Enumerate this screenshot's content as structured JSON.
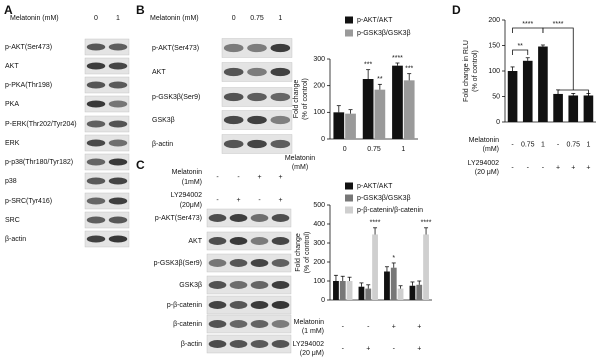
{
  "panels": {
    "A": {
      "label": "A",
      "header": "Melatonin (mM)",
      "columns": [
        "0",
        "1"
      ],
      "rows": [
        "p-AKT(Ser473)",
        "AKT",
        "p-PKA(Thr198)",
        "PKA",
        "P-ERK(Thr202/Tyr204)",
        "ERK",
        "p-p38(Thr180/Tyr182)",
        "p38",
        "p-SRC(Tyr416)",
        "SRC",
        "β-actin"
      ]
    },
    "B": {
      "label": "B",
      "header": "Melatonin (mM)",
      "columns": [
        "0",
        "0.75",
        "1"
      ],
      "rows": [
        "p-AKT(Ser473)",
        "AKT",
        "p-GSK3β(Ser9)",
        "GSK3β",
        "β-actin"
      ]
    },
    "C": {
      "label": "C",
      "conditions": [
        {
          "name": [
            "Melatonin",
            "(1mM)"
          ],
          "values": [
            "-",
            "-",
            "+",
            "+"
          ]
        },
        {
          "name": [
            "LY294002",
            "(20μM)"
          ],
          "values": [
            "-",
            "+",
            "-",
            "+"
          ]
        }
      ],
      "rows": [
        "p-AKT(Ser473)",
        "AKT",
        "p-GSK3β(Ser9)",
        "GSK3β",
        "p-β-catenin",
        "β-catenin",
        "β-actin"
      ]
    },
    "D": {
      "label": "D"
    }
  },
  "chart_data": [
    {
      "type": "bar",
      "ylabel": [
        "Fold change",
        "(% of control)"
      ],
      "xlabel": [
        "Melatonin",
        "(mM)"
      ],
      "categories": [
        "0",
        "0.75",
        "1"
      ],
      "series": [
        {
          "name": "p-AKT/AKT",
          "color": "#111111",
          "values": [
            100,
            225,
            275
          ],
          "errors": [
            25,
            35,
            10
          ],
          "significance": [
            null,
            "***",
            "****"
          ]
        },
        {
          "name": "p-GSK3β/GSK3β",
          "color": "#9a9a9a",
          "values": [
            95,
            185,
            220
          ],
          "errors": [
            15,
            20,
            25
          ],
          "significance": [
            null,
            "**",
            "***"
          ]
        }
      ],
      "ylim": [
        0,
        300
      ],
      "yticks": [
        0,
        100,
        200,
        300
      ],
      "legend": "top-left"
    },
    {
      "type": "bar",
      "ylabel": [
        "Fold change",
        "(% of control)"
      ],
      "categories": [
        null,
        null,
        null,
        null
      ],
      "conditions": [
        {
          "name": [
            "Melatonin",
            "(1 mM)"
          ],
          "values": [
            "-",
            "-",
            "+",
            "+"
          ]
        },
        {
          "name": [
            "LY294002",
            "(20 μM)"
          ],
          "values": [
            "-",
            "+",
            "-",
            "+"
          ]
        }
      ],
      "series": [
        {
          "name": "p-AKT/AKT",
          "color": "#111111",
          "values": [
            100,
            70,
            150,
            75
          ],
          "errors": [
            30,
            20,
            25,
            20
          ],
          "significance": [
            null,
            null,
            null,
            null
          ]
        },
        {
          "name": "p-GSK3β/GSK3β",
          "color": "#777777",
          "values": [
            100,
            60,
            170,
            80
          ],
          "errors": [
            25,
            20,
            25,
            20
          ],
          "significance": [
            null,
            null,
            "*",
            null
          ]
        },
        {
          "name": "p-β-catenin/β-catenin",
          "color": "#cfcfcf",
          "values": [
            100,
            345,
            60,
            345
          ],
          "errors": [
            20,
            35,
            15,
            35
          ],
          "significance": [
            null,
            "****",
            null,
            "****"
          ]
        }
      ],
      "ylim": [
        0,
        500
      ],
      "yticks": [
        0,
        100,
        200,
        300,
        400,
        500
      ],
      "legend": "top-left"
    },
    {
      "type": "bar",
      "ylabel": [
        "Fold change in RLU",
        "(% of control)"
      ],
      "categories": [
        null,
        null,
        null,
        null,
        null,
        null
      ],
      "conditions": [
        {
          "name": [
            "Melatonin",
            "(mM)"
          ],
          "values": [
            "-",
            "0.75",
            "1",
            "-",
            "0.75",
            "1"
          ]
        },
        {
          "name": [
            "LY294002",
            "(20 μM)"
          ],
          "values": [
            "-",
            "-",
            "-",
            "+",
            "+",
            "+"
          ]
        }
      ],
      "series": [
        {
          "color": "#111111",
          "values": [
            100,
            120,
            148,
            55,
            52,
            52
          ],
          "errors": [
            8,
            6,
            3,
            8,
            4,
            4
          ]
        }
      ],
      "brackets": [
        "**",
        "****",
        "****"
      ],
      "ylim": [
        0,
        200
      ],
      "yticks": [
        0,
        50,
        100,
        150,
        200
      ]
    }
  ]
}
